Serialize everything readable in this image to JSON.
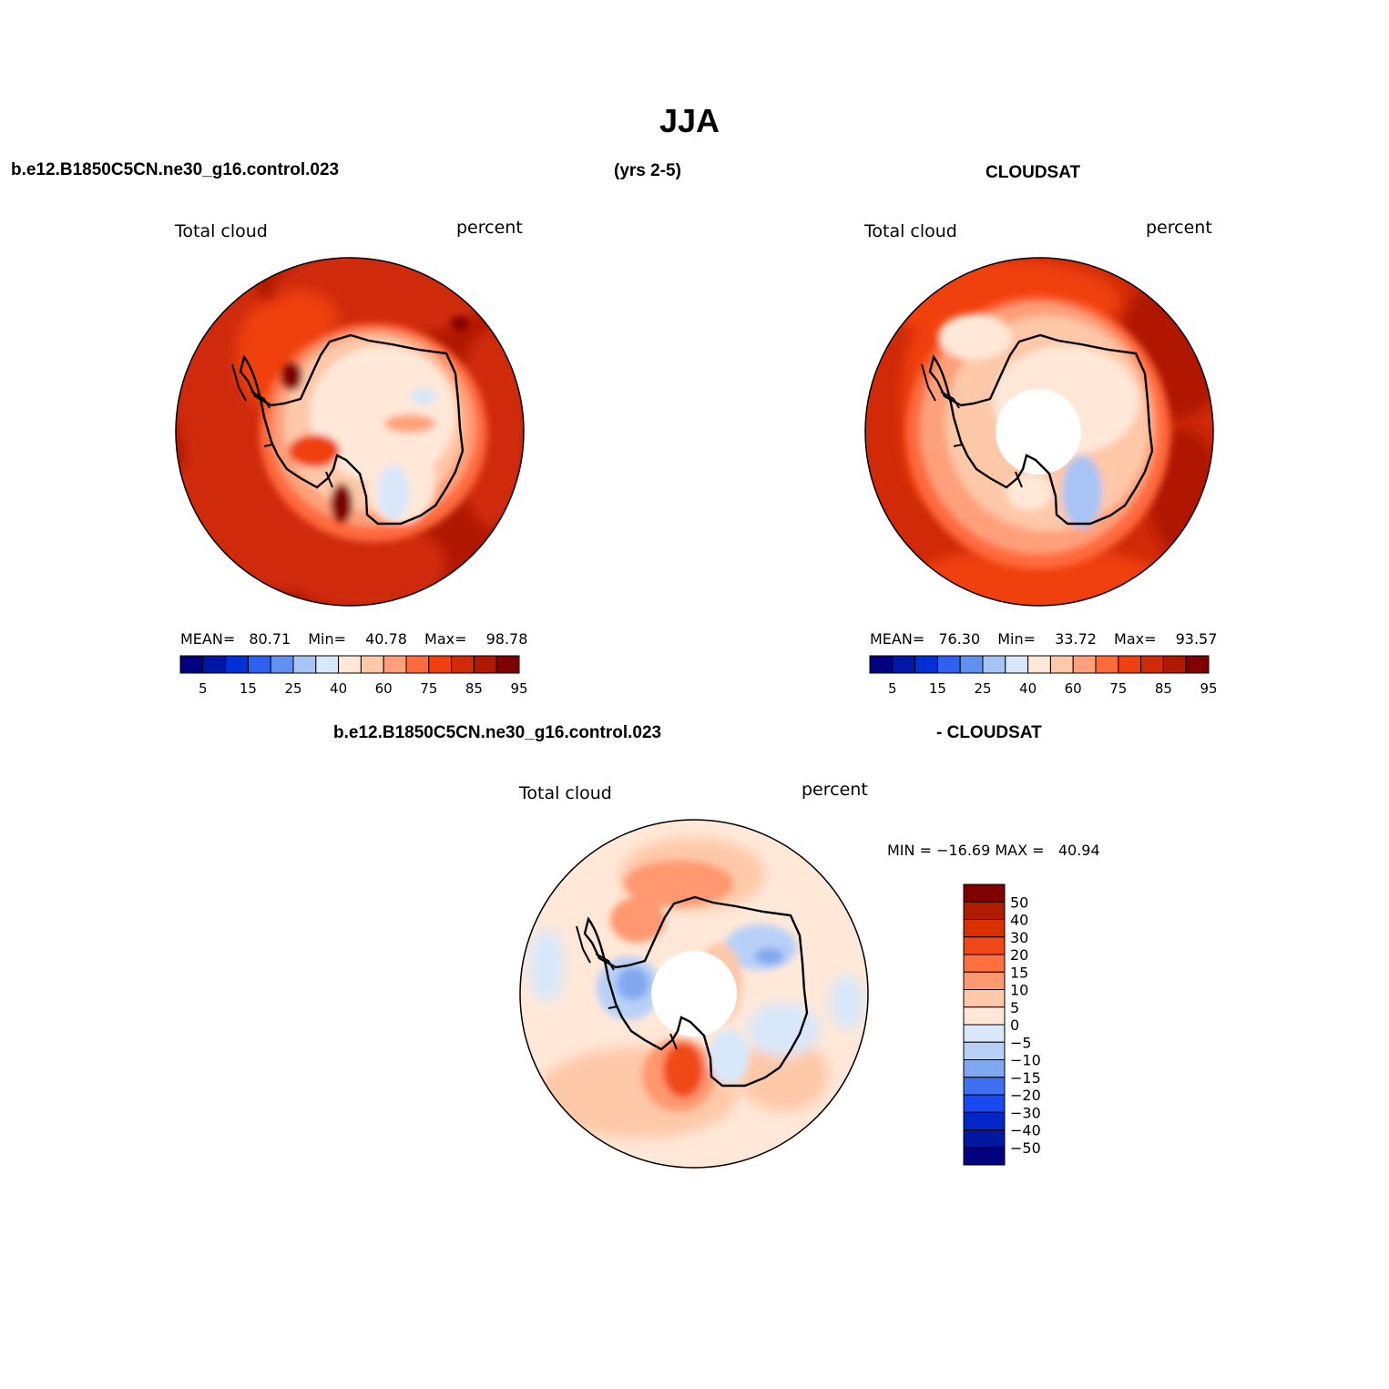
{
  "page": {
    "title": "JJA",
    "left_header": "b.e12.B1850C5CN.ne30_g16.control.023",
    "center_header": "(yrs 2-5)",
    "right_header": "CLOUDSAT",
    "bottom_header_left": "b.e12.B1850C5CN.ne30_g16.control.023",
    "bottom_header_right": "- CLOUDSAT"
  },
  "panels": {
    "model": {
      "variable": "Total cloud",
      "units": "percent",
      "mean_label": "MEAN=",
      "mean": "80.71",
      "min_label": "Min=",
      "min": "40.78",
      "max_label": "Max=",
      "max": "98.78"
    },
    "obs": {
      "variable": "Total cloud",
      "units": "percent",
      "mean_label": "MEAN=",
      "mean": "76.30",
      "min_label": "Min=",
      "min": "33.72",
      "max_label": "Max=",
      "max": "93.57"
    },
    "diff": {
      "variable": "Total cloud",
      "units": "percent",
      "minmax_text": "MIN = −16.69 MAX =   40.94"
    }
  },
  "colorbars": {
    "abs": {
      "colors": [
        "#000080",
        "#0018a8",
        "#0030d8",
        "#3060f0",
        "#6090f0",
        "#a8c4f4",
        "#d8e8fa",
        "#ffe8d8",
        "#ffc8a8",
        "#ffa07a",
        "#ff6a3c",
        "#f04010",
        "#d02a08",
        "#b01800",
        "#800000"
      ],
      "tick_labels": [
        "5",
        "15",
        "25",
        "40",
        "60",
        "75",
        "85",
        "95"
      ]
    },
    "diff": {
      "colors": [
        "#800000",
        "#b01c00",
        "#d83000",
        "#f04818",
        "#ff7040",
        "#ff9870",
        "#ffc8a8",
        "#ffe8d8",
        "#d8e8fa",
        "#b8d0f8",
        "#80a8f0",
        "#4070f0",
        "#1848f0",
        "#0028c8",
        "#0018a0",
        "#000080"
      ],
      "tick_labels": [
        "50",
        "40",
        "30",
        "20",
        "15",
        "10",
        "5",
        "0",
        "−5",
        "−10",
        "−15",
        "−20",
        "−30",
        "−40",
        "−50"
      ]
    }
  }
}
